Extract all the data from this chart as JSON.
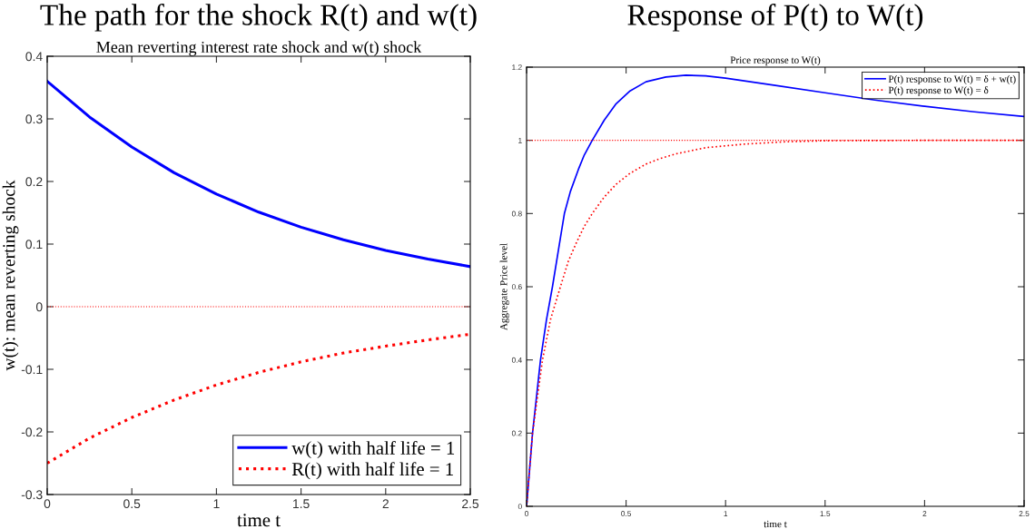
{
  "chart_data": [
    {
      "type": "line",
      "title": "The path for the shock R(t) and w(t)",
      "subtitle": "Mean reverting interest rate shock and w(t) shock",
      "xlabel": "time t",
      "ylabel": "w(t): mean reverting shock",
      "x": [
        0,
        0.25,
        0.5,
        0.75,
        1,
        1.25,
        1.5,
        1.75,
        2,
        2.25,
        2.5
      ],
      "series": [
        {
          "name": "w(t) with half life = 1",
          "color": "#0000ff",
          "line_style": "solid",
          "values": [
            0.36,
            0.303,
            0.255,
            0.214,
            0.18,
            0.151,
            0.127,
            0.107,
            0.09,
            0.076,
            0.064
          ]
        },
        {
          "name": "R(t) with half life = 1",
          "color": "#ff0000",
          "line_style": "dotted",
          "values": [
            -0.25,
            -0.21,
            -0.177,
            -0.149,
            -0.125,
            -0.105,
            -0.088,
            -0.074,
            -0.063,
            -0.053,
            -0.044
          ]
        }
      ],
      "ref_lines": [
        {
          "axis": "y",
          "value": 0,
          "label": null,
          "color": "#ff0000",
          "line_style": "dotted"
        }
      ],
      "xlim": [
        0,
        2.5
      ],
      "xticks": [
        0,
        0.5,
        1,
        1.5,
        2,
        2.5
      ],
      "ylim": [
        -0.3,
        0.4
      ],
      "yticks": [
        -0.3,
        -0.2,
        -0.1,
        0,
        0.1,
        0.2,
        0.3,
        0.4
      ],
      "legend": "bottom right",
      "grid": false
    },
    {
      "type": "line",
      "title": "Response of P(t) to W(t)",
      "subtitle": "Price response to W(t)",
      "xlabel": "time t",
      "ylabel": "Aggregate Price level",
      "series": [
        {
          "name": "P(t) response to W(t) = δ + w(t)",
          "color": "#0000ff",
          "line_style": "solid",
          "x": [
            0,
            0.03,
            0.07,
            0.1,
            0.13,
            0.16,
            0.19,
            0.22,
            0.26,
            0.29,
            0.33,
            0.39,
            0.45,
            0.52,
            0.6,
            0.7,
            0.8,
            0.9,
            1.0,
            1.25,
            1.5,
            1.75,
            2.0,
            2.25,
            2.5
          ],
          "values": [
            0,
            0.2,
            0.4,
            0.51,
            0.6,
            0.7,
            0.8,
            0.86,
            0.92,
            0.96,
            1.0,
            1.055,
            1.1,
            1.135,
            1.16,
            1.173,
            1.178,
            1.176,
            1.17,
            1.15,
            1.13,
            1.11,
            1.093,
            1.078,
            1.065
          ]
        },
        {
          "name": "P(t) response to W(t) = δ",
          "color": "#ff0000",
          "line_style": "dotted",
          "x": [
            0,
            0.03,
            0.08,
            0.12,
            0.17,
            0.21,
            0.25,
            0.29,
            0.33,
            0.39,
            0.45,
            0.52,
            0.6,
            0.67,
            0.75,
            0.9,
            1.1,
            1.3,
            1.5,
            2.0,
            2.5
          ],
          "values": [
            0,
            0.2,
            0.4,
            0.51,
            0.6,
            0.67,
            0.72,
            0.765,
            0.8,
            0.845,
            0.88,
            0.91,
            0.935,
            0.95,
            0.963,
            0.98,
            0.99,
            0.996,
            0.999,
            1.0,
            1.0
          ]
        }
      ],
      "ref_lines": [
        {
          "axis": "y",
          "value": 1,
          "label": null,
          "color": "#ff0000",
          "line_style": "dotted"
        }
      ],
      "xlim": [
        0,
        2.5
      ],
      "xticks": [
        0,
        0.5,
        1,
        1.5,
        2,
        2.5
      ],
      "ylim": [
        0,
        1.2
      ],
      "yticks": [
        0,
        0.2,
        0.4,
        0.6,
        0.8,
        1,
        1.2
      ],
      "legend": "top right",
      "grid": false
    }
  ]
}
